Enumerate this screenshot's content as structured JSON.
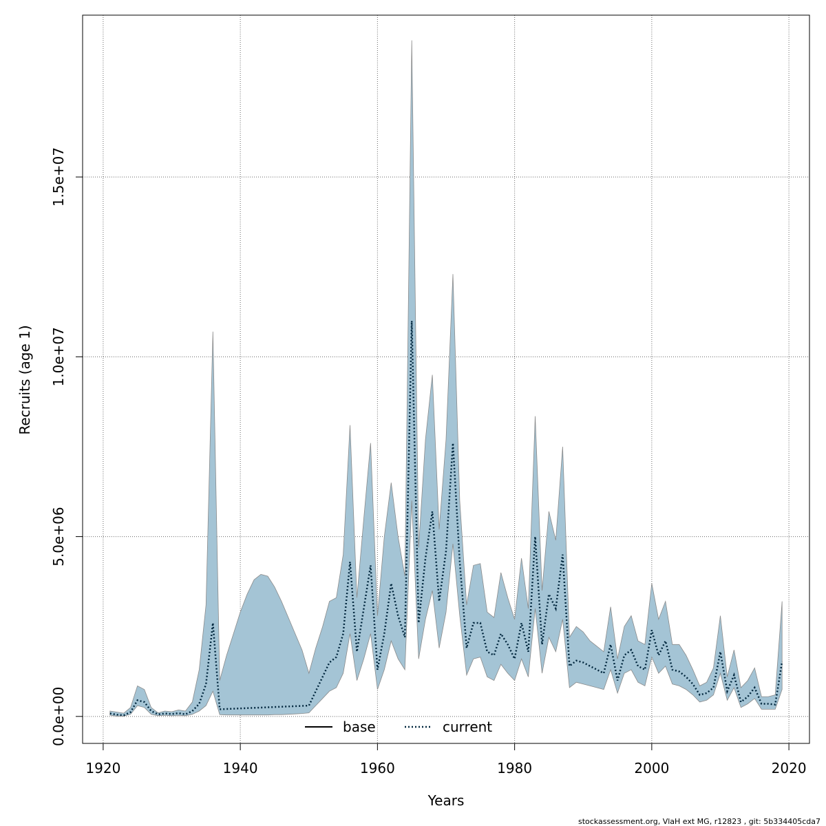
{
  "chart_data": {
    "type": "area",
    "xlabel": "Years",
    "ylabel": "Recruits (age 1)",
    "xlim": [
      1917,
      2023
    ],
    "ylim": [
      -750000,
      19500000
    ],
    "x_ticks": [
      1920,
      1940,
      1960,
      1980,
      2000,
      2020
    ],
    "y_ticks": [
      0,
      5000000,
      10000000,
      15000000
    ],
    "y_tick_labels": [
      "0.0e+00",
      "5.0e+06",
      "1.0e+07",
      "1.5e+07"
    ],
    "grid": true,
    "legend_position": "bottom",
    "colors": {
      "band_fill": "#a4c4d5",
      "band_edge": "#8a8a8a",
      "base_line": "#000000",
      "current_line": "#00263d",
      "grid": "#666666"
    },
    "series": [
      {
        "name": "base",
        "style": "solid",
        "x": [],
        "values": []
      },
      {
        "name": "current",
        "style": "dotted",
        "x": [
          1921,
          1922,
          1923,
          1924,
          1925,
          1926,
          1927,
          1928,
          1929,
          1930,
          1931,
          1932,
          1933,
          1934,
          1935,
          1936,
          1937,
          1950,
          1951,
          1952,
          1953,
          1954,
          1955,
          1956,
          1957,
          1958,
          1959,
          1960,
          1961,
          1962,
          1963,
          1964,
          1965,
          1966,
          1967,
          1968,
          1969,
          1970,
          1971,
          1972,
          1973,
          1974,
          1975,
          1976,
          1977,
          1978,
          1979,
          1980,
          1981,
          1982,
          1983,
          1984,
          1985,
          1986,
          1987,
          1988,
          1989,
          1990,
          1991,
          1992,
          1993,
          1994,
          1995,
          1996,
          1997,
          1998,
          1999,
          2000,
          2001,
          2002,
          2003,
          2004,
          2005,
          2006,
          2007,
          2008,
          2009,
          2010,
          2011,
          2012,
          2013,
          2014,
          2015,
          2016,
          2017,
          2018,
          2019
        ],
        "values": [
          80000,
          50000,
          30000,
          120000,
          450000,
          400000,
          150000,
          60000,
          80000,
          70000,
          90000,
          60000,
          150000,
          350000,
          900000,
          2600000,
          200000,
          300000,
          700000,
          1100000,
          1500000,
          1650000,
          2300000,
          4300000,
          1800000,
          3000000,
          4200000,
          1300000,
          2300000,
          3700000,
          2800000,
          2200000,
          11000000,
          2600000,
          4400000,
          5700000,
          3200000,
          4600000,
          7600000,
          4300000,
          1900000,
          2600000,
          2600000,
          1800000,
          1700000,
          2300000,
          2000000,
          1600000,
          2600000,
          1800000,
          5000000,
          2000000,
          3400000,
          3000000,
          4500000,
          1400000,
          1550000,
          1500000,
          1400000,
          1300000,
          1200000,
          2000000,
          1000000,
          1700000,
          1850000,
          1400000,
          1300000,
          2400000,
          1700000,
          2100000,
          1300000,
          1250000,
          1100000,
          900000,
          600000,
          650000,
          800000,
          1800000,
          700000,
          1150000,
          400000,
          550000,
          800000,
          350000,
          350000,
          330000,
          1530000
        ]
      }
    ],
    "band": {
      "x": [
        1921,
        1922,
        1923,
        1924,
        1925,
        1926,
        1927,
        1928,
        1929,
        1930,
        1931,
        1932,
        1933,
        1934,
        1935,
        1936,
        1937,
        1938,
        1939,
        1940,
        1941,
        1942,
        1943,
        1944,
        1945,
        1946,
        1947,
        1948,
        1949,
        1950,
        1951,
        1952,
        1953,
        1954,
        1955,
        1956,
        1957,
        1958,
        1959,
        1960,
        1961,
        1962,
        1963,
        1964,
        1965,
        1966,
        1967,
        1968,
        1969,
        1970,
        1971,
        1972,
        1973,
        1974,
        1975,
        1976,
        1977,
        1978,
        1979,
        1980,
        1981,
        1982,
        1983,
        1984,
        1985,
        1986,
        1987,
        1988,
        1989,
        1990,
        1991,
        1992,
        1993,
        1994,
        1995,
        1996,
        1997,
        1998,
        1999,
        2000,
        2001,
        2002,
        2003,
        2004,
        2005,
        2006,
        2007,
        2008,
        2009,
        2010,
        2011,
        2012,
        2013,
        2014,
        2015,
        2016,
        2017,
        2018,
        2019
      ],
      "upper": [
        150000,
        120000,
        90000,
        250000,
        850000,
        750000,
        250000,
        100000,
        150000,
        130000,
        180000,
        150000,
        400000,
        1300000,
        3100000,
        10700000,
        1000000,
        1700000,
        2300000,
        2900000,
        3400000,
        3800000,
        3950000,
        3900000,
        3600000,
        3200000,
        2750000,
        2300000,
        1850000,
        1200000,
        1900000,
        2500000,
        3200000,
        3300000,
        4500000,
        8100000,
        3300000,
        5500000,
        7600000,
        2800000,
        5000000,
        6500000,
        5000000,
        3900000,
        18800000,
        4700000,
        7700000,
        9500000,
        5200000,
        7700000,
        12300000,
        6000000,
        3100000,
        4200000,
        4250000,
        2900000,
        2750000,
        4000000,
        3300000,
        2700000,
        4400000,
        3000000,
        8350000,
        3500000,
        5700000,
        4900000,
        7500000,
        2200000,
        2500000,
        2350000,
        2100000,
        1950000,
        1800000,
        3050000,
        1600000,
        2500000,
        2800000,
        2100000,
        2000000,
        3700000,
        2700000,
        3200000,
        2000000,
        2000000,
        1700000,
        1300000,
        850000,
        950000,
        1350000,
        2800000,
        1100000,
        1850000,
        800000,
        1000000,
        1350000,
        550000,
        550000,
        600000,
        3200000
      ],
      "lower": [
        30000,
        10000,
        10000,
        60000,
        300000,
        250000,
        60000,
        20000,
        30000,
        20000,
        30000,
        20000,
        60000,
        150000,
        300000,
        700000,
        50000,
        40000,
        40000,
        40000,
        40000,
        40000,
        40000,
        40000,
        50000,
        50000,
        60000,
        70000,
        80000,
        100000,
        300000,
        500000,
        700000,
        800000,
        1200000,
        2300000,
        1000000,
        1600000,
        2300000,
        750000,
        1300000,
        2100000,
        1600000,
        1300000,
        6000000,
        1600000,
        2700000,
        3500000,
        1900000,
        2900000,
        4800000,
        2800000,
        1150000,
        1600000,
        1650000,
        1100000,
        1000000,
        1450000,
        1200000,
        1000000,
        1600000,
        1100000,
        3000000,
        1200000,
        2200000,
        1800000,
        2700000,
        800000,
        950000,
        900000,
        850000,
        800000,
        750000,
        1300000,
        650000,
        1200000,
        1300000,
        950000,
        850000,
        1650000,
        1200000,
        1400000,
        900000,
        850000,
        750000,
        600000,
        400000,
        450000,
        600000,
        1200000,
        450000,
        800000,
        250000,
        350000,
        500000,
        200000,
        200000,
        200000,
        750000
      ]
    }
  },
  "legend": {
    "items": [
      {
        "label": "base"
      },
      {
        "label": "current"
      }
    ]
  },
  "footer": {
    "text": "stockassessment.org, VlaH  ext  MG, r12823 , git: 5b334405cda7"
  }
}
